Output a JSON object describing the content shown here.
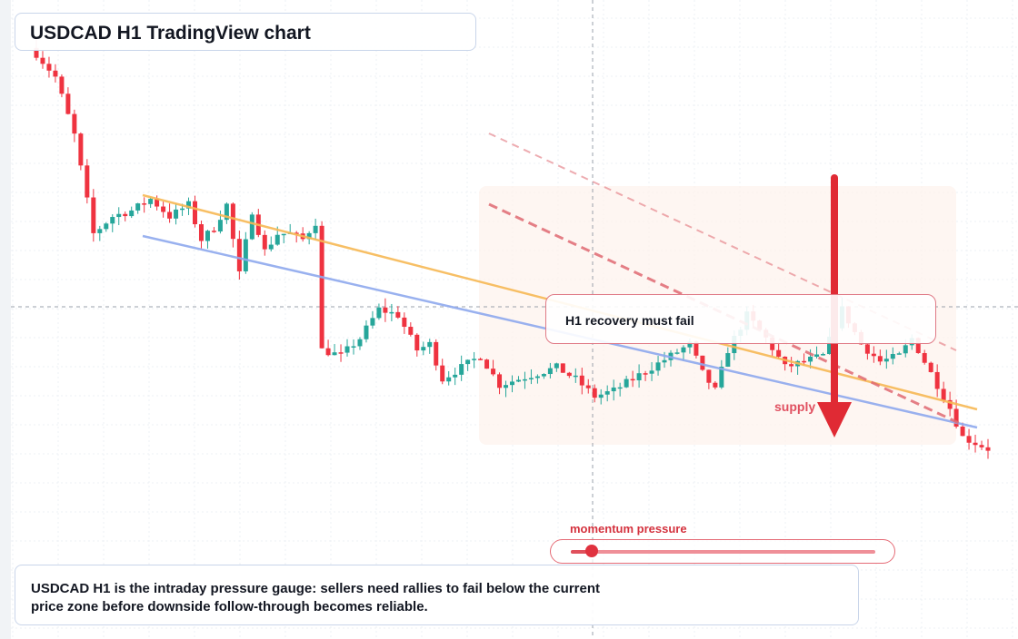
{
  "title": "USDCAD H1 TradingView chart",
  "callout": "H1 recovery must fail",
  "zone_label": "supply",
  "pressure": {
    "label": "momentum pressure",
    "level": 0.07
  },
  "note": "USDCAD H1 is the intraday pressure gauge: sellers need rallies to fail below the current price zone before downside follow-through becomes reliable.",
  "colors": {
    "bull": "#26a69a",
    "bear": "#ef3340",
    "trendline_upper": "#f7b955",
    "trendline_lower": "#8fa9ee",
    "channel": "#e06a72",
    "arrow": "#e02a34",
    "zone": "#fdf3ee"
  },
  "icons": {
    "arrow": "down-arrow-icon"
  },
  "chart_data": {
    "type": "candlestick",
    "title": "USDCAD H1 TradingView chart",
    "price_scale": "none",
    "grid": true,
    "ylim": [
      0,
      100
    ],
    "path": [
      [
        0,
        97
      ],
      [
        3,
        93
      ],
      [
        6,
        83
      ],
      [
        9,
        66
      ],
      [
        12,
        69
      ],
      [
        15,
        70
      ],
      [
        18,
        72
      ],
      [
        21,
        69
      ],
      [
        24,
        71
      ],
      [
        26,
        65
      ],
      [
        28,
        67
      ],
      [
        30,
        71
      ],
      [
        32,
        59
      ],
      [
        34,
        70
      ],
      [
        36,
        63
      ],
      [
        38,
        66
      ],
      [
        40,
        66
      ],
      [
        42,
        65
      ],
      [
        44,
        68
      ],
      [
        45,
        46
      ],
      [
        48,
        45
      ],
      [
        51,
        48
      ],
      [
        54,
        53
      ],
      [
        57,
        52
      ],
      [
        60,
        46
      ],
      [
        62,
        47
      ],
      [
        64,
        41
      ],
      [
        67,
        43
      ],
      [
        70,
        45
      ],
      [
        73,
        40
      ],
      [
        76,
        41
      ],
      [
        79,
        42
      ],
      [
        82,
        43
      ],
      [
        85,
        41
      ],
      [
        88,
        38
      ],
      [
        91,
        39
      ],
      [
        94,
        41
      ],
      [
        97,
        43
      ],
      [
        100,
        45
      ],
      [
        103,
        47
      ],
      [
        105,
        42
      ],
      [
        107,
        39
      ],
      [
        109,
        46
      ],
      [
        112,
        52
      ],
      [
        115,
        48
      ],
      [
        118,
        43
      ],
      [
        121,
        44
      ],
      [
        124,
        45
      ],
      [
        127,
        53
      ],
      [
        130,
        47
      ],
      [
        133,
        44
      ],
      [
        136,
        45
      ],
      [
        138,
        48
      ],
      [
        140,
        44
      ],
      [
        142,
        40
      ],
      [
        144,
        36
      ],
      [
        146,
        31
      ],
      [
        148,
        30
      ],
      [
        150,
        29
      ]
    ]
  }
}
